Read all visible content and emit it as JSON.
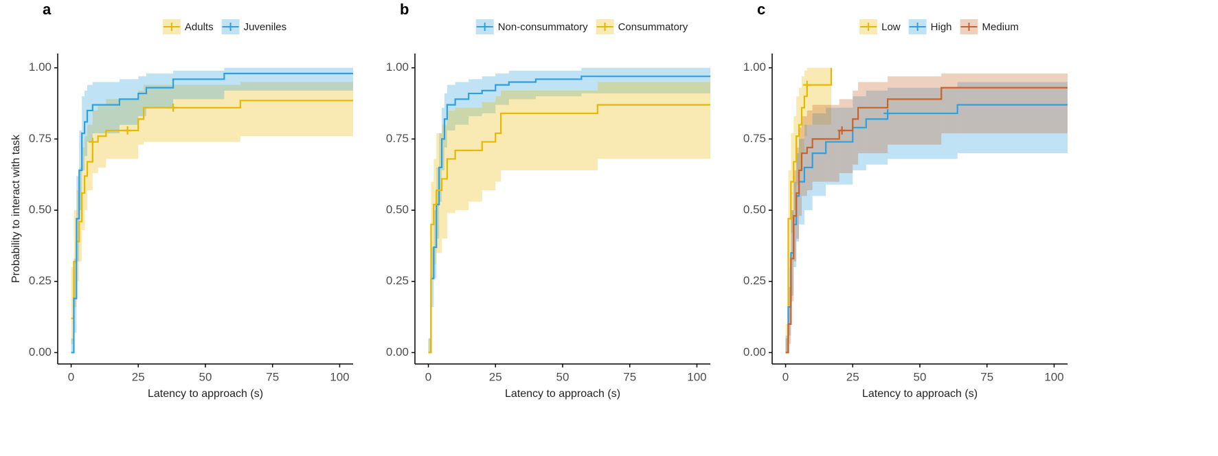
{
  "chart_data": [
    {
      "type": "step",
      "panel": "a",
      "xlabel": "Latency to approach (s)",
      "ylabel": "Probability to interact with task",
      "xlim": [
        -5,
        105
      ],
      "ylim": [
        -0.04,
        1.05
      ],
      "xticks": [
        0,
        25,
        50,
        75,
        100
      ],
      "yticks": [
        {
          "value": 0,
          "label": "0.00"
        },
        {
          "value": 0.25,
          "label": "0.25"
        },
        {
          "value": 0.5,
          "label": "0.50"
        },
        {
          "value": 0.75,
          "label": "0.75"
        },
        {
          "value": 1,
          "label": "1.00"
        }
      ],
      "series": [
        {
          "name": "Adults",
          "color": "#E7B800",
          "x": [
            0,
            1,
            2,
            3,
            4,
            5,
            6,
            8,
            10,
            13,
            20,
            25,
            27,
            37,
            63,
            105
          ],
          "values": [
            0.12,
            0.32,
            0.39,
            0.46,
            0.56,
            0.62,
            0.67,
            0.74,
            0.76,
            0.78,
            0.78,
            0.82,
            0.86,
            0.86,
            0.885,
            0.885
          ],
          "lower": [
            0.03,
            0.16,
            0.25,
            0.32,
            0.43,
            0.5,
            0.57,
            0.63,
            0.65,
            0.68,
            0.68,
            0.73,
            0.74,
            0.74,
            0.76,
            0.76
          ],
          "upper": [
            0.3,
            0.5,
            0.57,
            0.65,
            0.72,
            0.76,
            0.8,
            0.85,
            0.87,
            0.89,
            0.89,
            0.92,
            0.94,
            0.94,
            0.95,
            0.95
          ],
          "censor_x": [
            8,
            21,
            38
          ],
          "censor_y": [
            0.74,
            0.78,
            0.86
          ]
        },
        {
          "name": "Juveniles",
          "color": "#2E9FDF",
          "x": [
            0,
            1,
            2,
            3,
            4,
            5,
            6,
            8,
            13,
            18,
            25,
            28,
            38,
            57,
            105
          ],
          "values": [
            0,
            0.19,
            0.47,
            0.64,
            0.77,
            0.81,
            0.85,
            0.87,
            0.87,
            0.89,
            0.91,
            0.93,
            0.96,
            0.98,
            0.98
          ],
          "lower": [
            0,
            0.07,
            0.32,
            0.5,
            0.64,
            0.69,
            0.74,
            0.77,
            0.77,
            0.8,
            0.83,
            0.86,
            0.89,
            0.92,
            0.92
          ],
          "upper": [
            0.05,
            0.33,
            0.62,
            0.78,
            0.9,
            0.92,
            0.94,
            0.95,
            0.95,
            0.96,
            0.97,
            0.98,
            0.99,
            1,
            1
          ]
        }
      ]
    },
    {
      "type": "step",
      "panel": "b",
      "xlabel": "Latency to approach (s)",
      "xlim": [
        -5,
        105
      ],
      "ylim": [
        -0.04,
        1.05
      ],
      "xticks": [
        0,
        25,
        50,
        75,
        100
      ],
      "yticks": [
        {
          "value": 0,
          "label": "0.00"
        },
        {
          "value": 0.25,
          "label": "0.25"
        },
        {
          "value": 0.5,
          "label": "0.50"
        },
        {
          "value": 0.75,
          "label": "0.75"
        },
        {
          "value": 1,
          "label": "1.00"
        }
      ],
      "series": [
        {
          "name": "Non-consummatory",
          "color": "#2E9FDF",
          "x": [
            0,
            1,
            2,
            3,
            4,
            5,
            6,
            7,
            10,
            15,
            20,
            25,
            30,
            40,
            57,
            105
          ],
          "values": [
            0,
            0.26,
            0.37,
            0.52,
            0.65,
            0.75,
            0.82,
            0.87,
            0.89,
            0.91,
            0.92,
            0.94,
            0.95,
            0.96,
            0.97,
            0.97
          ],
          "lower": [
            0,
            0.16,
            0.26,
            0.4,
            0.53,
            0.64,
            0.72,
            0.78,
            0.8,
            0.83,
            0.84,
            0.87,
            0.89,
            0.9,
            0.91,
            0.91
          ],
          "upper": [
            0.05,
            0.37,
            0.5,
            0.65,
            0.77,
            0.86,
            0.91,
            0.94,
            0.95,
            0.96,
            0.97,
            0.98,
            0.99,
            0.99,
            1,
            1
          ]
        },
        {
          "name": "Consummatory",
          "color": "#E7B800",
          "x": [
            0,
            1,
            2,
            3,
            5,
            7,
            10,
            15,
            20,
            25,
            27,
            28,
            63,
            105
          ],
          "values": [
            0,
            0.45,
            0.52,
            0.57,
            0.61,
            0.68,
            0.71,
            0.71,
            0.74,
            0.77,
            0.84,
            0.84,
            0.87,
            0.87
          ],
          "lower": [
            0,
            0.26,
            0.31,
            0.35,
            0.4,
            0.49,
            0.5,
            0.53,
            0.57,
            0.6,
            0.64,
            0.64,
            0.68,
            0.68
          ],
          "upper": [
            0.05,
            0.6,
            0.68,
            0.77,
            0.8,
            0.85,
            0.86,
            0.86,
            0.88,
            0.9,
            0.92,
            0.92,
            0.95,
            0.95
          ]
        }
      ]
    },
    {
      "type": "step",
      "panel": "c",
      "xlabel": "Latency to approach (s)",
      "xlim": [
        -5,
        105
      ],
      "ylim": [
        -0.04,
        1.05
      ],
      "xticks": [
        0,
        25,
        50,
        75,
        100
      ],
      "yticks": [
        {
          "value": 0,
          "label": "0.00"
        },
        {
          "value": 0.25,
          "label": "0.25"
        },
        {
          "value": 0.5,
          "label": "0.50"
        },
        {
          "value": 0.75,
          "label": "0.75"
        },
        {
          "value": 1,
          "label": "1.00"
        }
      ],
      "series": [
        {
          "name": "Low",
          "color": "#E7B800",
          "x": [
            0,
            1,
            2,
            3,
            4,
            5,
            6,
            7,
            8,
            17
          ],
          "values": [
            0,
            0.47,
            0.6,
            0.67,
            0.76,
            0.8,
            0.86,
            0.9,
            0.94,
            1
          ],
          "lower": [
            0,
            0.3,
            0.42,
            0.5,
            0.59,
            0.64,
            0.7,
            0.76,
            0.8,
            0.8
          ],
          "upper": [
            0.1,
            0.64,
            0.77,
            0.83,
            0.9,
            0.93,
            0.97,
            0.99,
            1,
            1
          ],
          "censor_x": [
            8
          ],
          "censor_y": [
            0.94
          ]
        },
        {
          "name": "High",
          "color": "#2E9FDF",
          "x": [
            0,
            1,
            2,
            3,
            4,
            5,
            7,
            10,
            15,
            25,
            30,
            38,
            64,
            105
          ],
          "values": [
            0,
            0.16,
            0.35,
            0.45,
            0.55,
            0.6,
            0.65,
            0.7,
            0.74,
            0.79,
            0.82,
            0.84,
            0.87,
            0.87
          ],
          "lower": [
            0,
            0.06,
            0.2,
            0.3,
            0.39,
            0.45,
            0.5,
            0.55,
            0.59,
            0.64,
            0.66,
            0.68,
            0.7,
            0.7
          ],
          "upper": [
            0.06,
            0.3,
            0.5,
            0.6,
            0.7,
            0.75,
            0.8,
            0.84,
            0.86,
            0.9,
            0.92,
            0.93,
            0.95,
            0.95
          ],
          "censor_x": [
            38
          ],
          "censor_y": [
            0.84
          ]
        },
        {
          "name": "Medium",
          "color": "#C8622A",
          "x": [
            0,
            1,
            2,
            3,
            4,
            5,
            6,
            8,
            10,
            20,
            25,
            27,
            38,
            58,
            105
          ],
          "values": [
            0,
            0.1,
            0.33,
            0.48,
            0.56,
            0.64,
            0.7,
            0.72,
            0.75,
            0.78,
            0.82,
            0.86,
            0.89,
            0.93,
            0.93
          ],
          "lower": [
            0,
            0.03,
            0.18,
            0.32,
            0.4,
            0.48,
            0.55,
            0.57,
            0.6,
            0.63,
            0.66,
            0.7,
            0.73,
            0.77,
            0.77
          ],
          "upper": [
            0.05,
            0.23,
            0.5,
            0.64,
            0.72,
            0.79,
            0.83,
            0.85,
            0.87,
            0.89,
            0.92,
            0.95,
            0.97,
            0.98,
            0.98
          ],
          "censor_x": [
            21
          ],
          "censor_y": [
            0.78
          ]
        }
      ]
    }
  ]
}
